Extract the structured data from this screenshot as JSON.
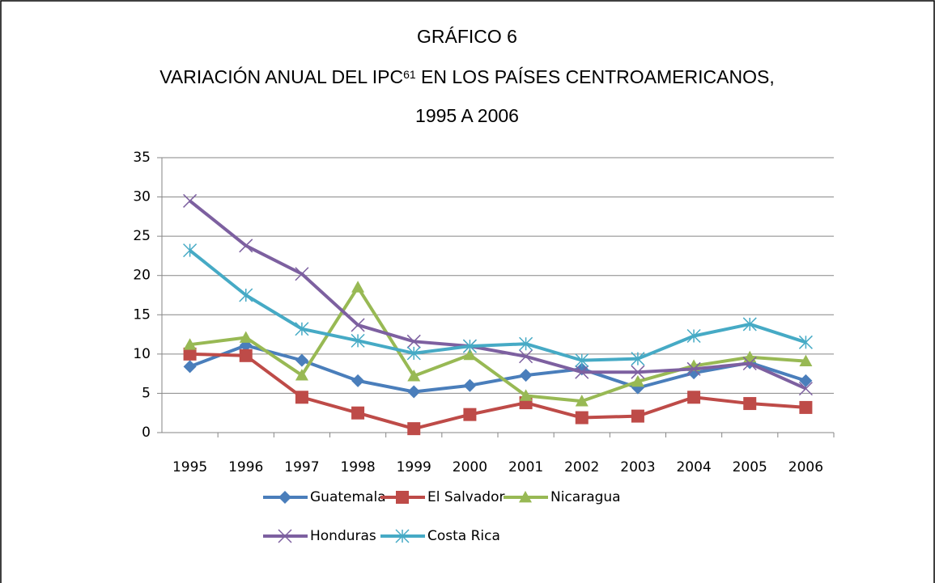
{
  "chart_data": {
    "type": "line",
    "title": "GRÁFICO 6",
    "subtitle": {
      "text": "VARIACIÓN ANUAL DEL IPC",
      "footnote": "61",
      "rest": " EN LOS PAÍSES CENTROAMERICANOS,"
    },
    "subtitle2": "1995 A 2006",
    "categories": [
      "1995",
      "1996",
      "1997",
      "1998",
      "1999",
      "2000",
      "2001",
      "2002",
      "2003",
      "2004",
      "2005",
      "2006"
    ],
    "series": [
      {
        "name": "Guatemala",
        "color": "#4a7ebb",
        "marker": "diamond",
        "values": [
          8.4,
          11.1,
          9.2,
          6.6,
          5.2,
          6.0,
          7.3,
          8.1,
          5.7,
          7.6,
          8.9,
          6.6
        ]
      },
      {
        "name": "El Salvador",
        "color": "#be4b48",
        "marker": "square",
        "values": [
          10.0,
          9.8,
          4.5,
          2.5,
          0.5,
          2.3,
          3.8,
          1.9,
          2.1,
          4.5,
          3.7,
          3.2
        ]
      },
      {
        "name": "Nicaragua",
        "color": "#98b954",
        "marker": "triangle",
        "values": [
          11.2,
          12.1,
          7.3,
          18.5,
          7.2,
          9.9,
          4.7,
          4.0,
          6.5,
          8.5,
          9.6,
          9.1
        ]
      },
      {
        "name": "Honduras",
        "color": "#7d60a0",
        "marker": "x",
        "values": [
          29.5,
          23.8,
          20.2,
          13.7,
          11.6,
          11.0,
          9.7,
          7.7,
          7.7,
          8.1,
          8.8,
          5.6
        ]
      },
      {
        "name": "Costa Rica",
        "color": "#46aac5",
        "marker": "star",
        "values": [
          23.2,
          17.5,
          13.2,
          11.7,
          10.1,
          11.0,
          11.3,
          9.2,
          9.4,
          12.3,
          13.8,
          11.5
        ]
      }
    ],
    "ylim": [
      0,
      35
    ],
    "yticks": [
      0,
      5,
      10,
      15,
      20,
      25,
      30,
      35
    ],
    "grid": true,
    "legend": "bottom"
  }
}
